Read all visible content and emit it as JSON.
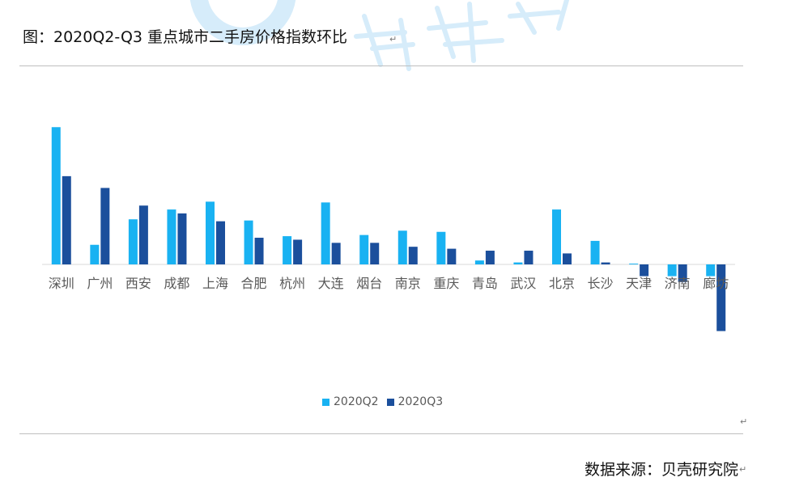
{
  "figure": {
    "title": "图：2020Q2-Q3 重点城市二手房价格指数环比",
    "source": "数据来源：贝壳研究院",
    "paragraph_mark": "↵"
  },
  "colors": {
    "q2": "#19B2F2",
    "q3": "#1B4F9C",
    "axis": "#D9D9D9",
    "watermark": "#D6ECFA"
  },
  "chart_data": {
    "type": "bar",
    "categories": [
      "深圳",
      "广州",
      "西安",
      "成都",
      "上海",
      "合肥",
      "杭州",
      "大连",
      "烟台",
      "南京",
      "重庆",
      "青岛",
      "武汉",
      "北京",
      "长沙",
      "天津",
      "济南",
      "廊坊"
    ],
    "series": [
      {
        "name": "2020Q2",
        "values": [
          3.5,
          0.5,
          1.15,
          1.4,
          1.6,
          1.12,
          0.72,
          1.58,
          0.75,
          0.86,
          0.83,
          0.1,
          0.05,
          1.4,
          0.6,
          0.02,
          -0.3,
          -0.3
        ]
      },
      {
        "name": "2020Q3",
        "values": [
          2.25,
          1.95,
          1.5,
          1.3,
          1.1,
          0.68,
          0.63,
          0.55,
          0.55,
          0.45,
          0.4,
          0.35,
          0.35,
          0.28,
          0.05,
          -0.3,
          -0.45,
          -1.7
        ]
      }
    ],
    "ylim": [
      -2.5,
      4.0
    ],
    "grid": false,
    "legend": "bottom-center",
    "xlabel": "",
    "ylabel": ""
  }
}
